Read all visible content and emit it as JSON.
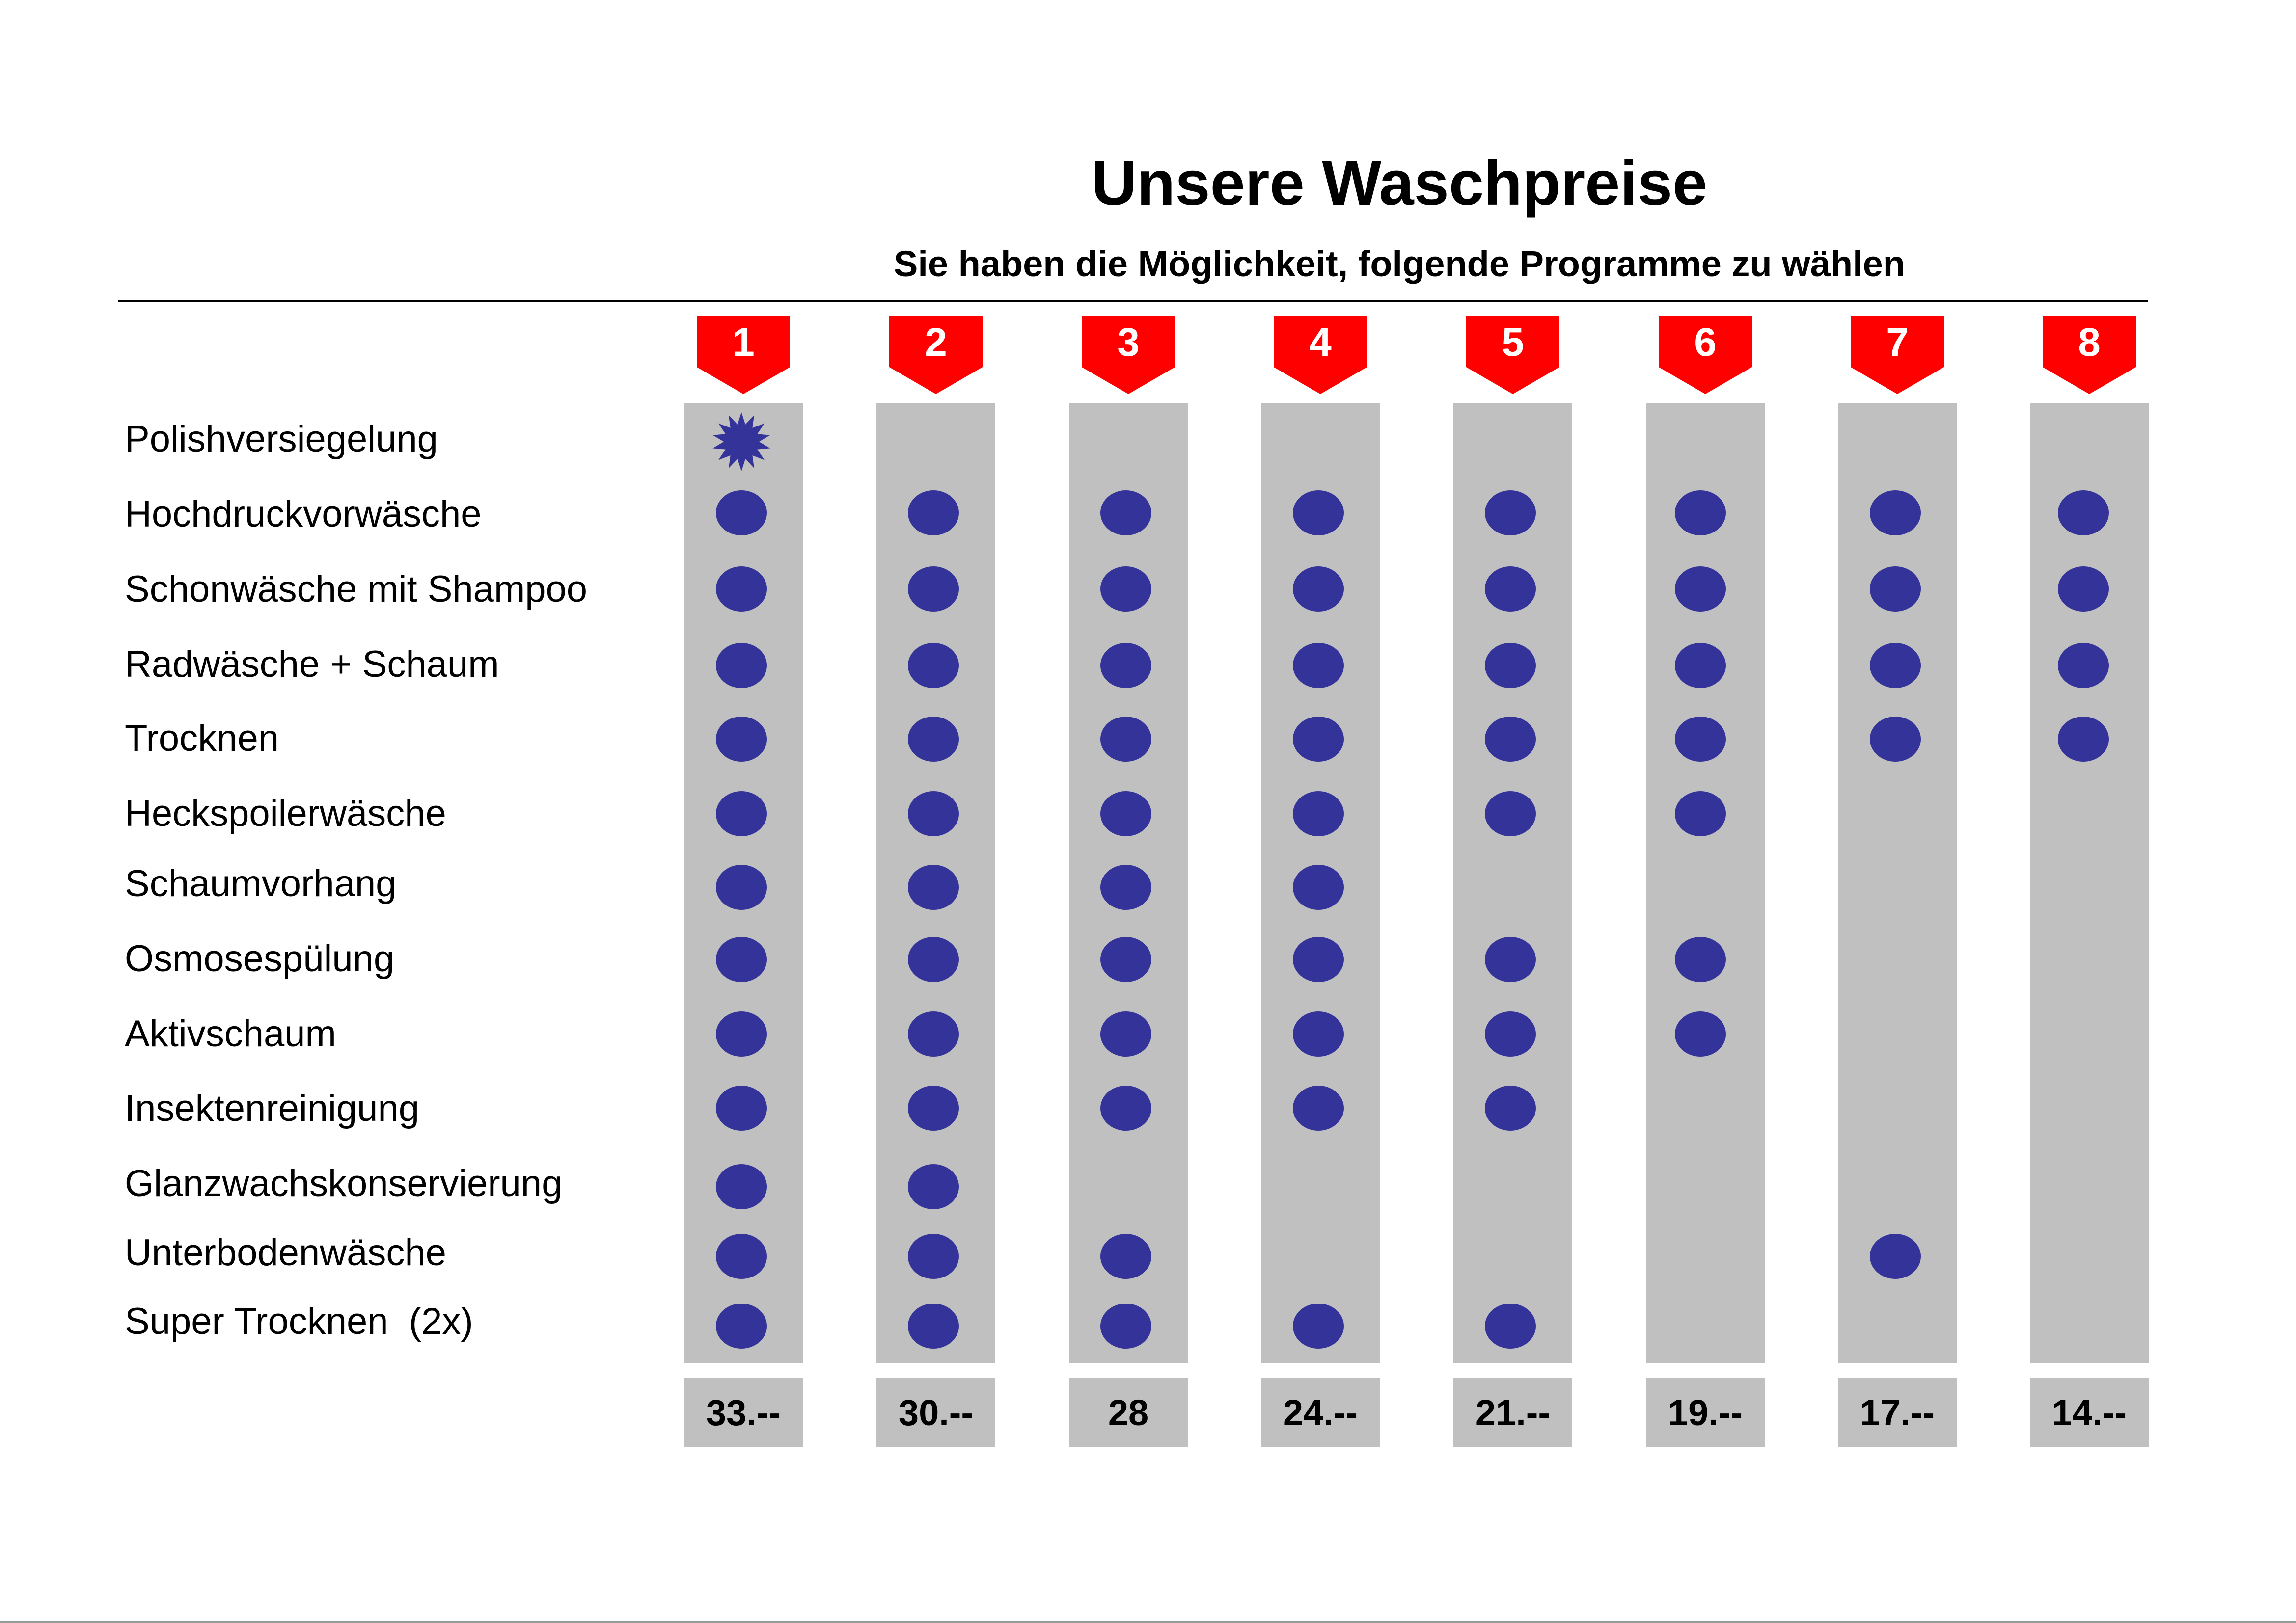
{
  "title": "Unsere Waschpreise",
  "subtitle": "Sie haben die Möglichkeit, folgende Programme zu wählen",
  "colors": {
    "tag": "#ff0000",
    "dot": "#33339a",
    "column": "#c0c0c0"
  },
  "programs": [
    "1",
    "2",
    "3",
    "4",
    "5",
    "6",
    "7",
    "8"
  ],
  "prices": [
    "33.--",
    "30.--",
    "28",
    "24.--",
    "21.--",
    "19.--",
    "17.--",
    "14.--"
  ],
  "features": [
    {
      "label": "Polishversiegelung",
      "included": [
        "star",
        null,
        null,
        null,
        null,
        null,
        null,
        null
      ]
    },
    {
      "label": "Hochdruckvorwäsche",
      "included": [
        true,
        true,
        true,
        true,
        true,
        true,
        true,
        true
      ]
    },
    {
      "label": "Schonwäsche mit Shampoo",
      "included": [
        true,
        true,
        true,
        true,
        true,
        true,
        true,
        true
      ]
    },
    {
      "label": "Radwäsche + Schaum",
      "included": [
        true,
        true,
        true,
        true,
        true,
        true,
        true,
        true
      ]
    },
    {
      "label": "Trocknen",
      "included": [
        true,
        true,
        true,
        true,
        true,
        true,
        true,
        true
      ]
    },
    {
      "label": "Heckspoilerwäsche",
      "included": [
        true,
        true,
        true,
        true,
        true,
        true,
        false,
        false
      ]
    },
    {
      "label": "Schaumvorhang",
      "included": [
        true,
        true,
        true,
        true,
        false,
        false,
        false,
        false
      ]
    },
    {
      "label": "Osmosespülung",
      "included": [
        true,
        true,
        true,
        true,
        true,
        true,
        false,
        false
      ]
    },
    {
      "label": "Aktivschaum",
      "included": [
        true,
        true,
        true,
        true,
        true,
        true,
        false,
        false
      ]
    },
    {
      "label": "Insektenreinigung",
      "included": [
        true,
        true,
        true,
        true,
        true,
        false,
        false,
        false
      ]
    },
    {
      "label": "Glanzwachskonservierung",
      "included": [
        true,
        true,
        false,
        false,
        false,
        false,
        false,
        false
      ]
    },
    {
      "label": "Unterbodenwäsche",
      "included": [
        true,
        true,
        true,
        false,
        false,
        false,
        true,
        false
      ]
    },
    {
      "label": "Super Trocknen  (2x)",
      "included": [
        true,
        true,
        true,
        true,
        true,
        false,
        false,
        false
      ]
    }
  ]
}
